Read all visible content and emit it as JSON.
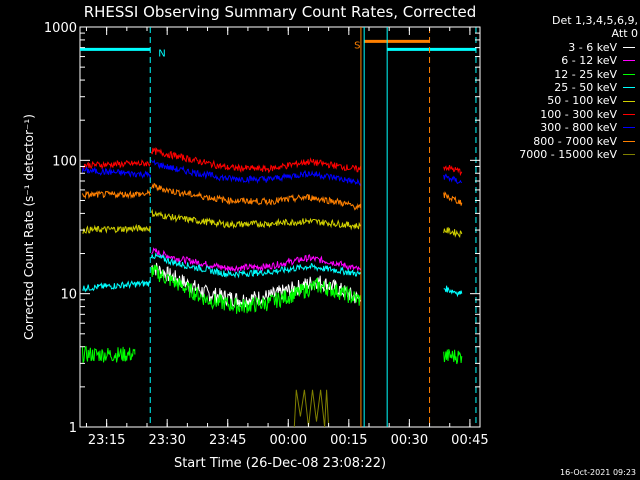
{
  "chart_data": {
    "type": "line",
    "title": "RHESSI Observing Summary Count Rates, Corrected",
    "xlabel": "Start Time (26-Dec-08 23:08:22)",
    "ylabel": "Corrected Count Rate (s⁻¹ detector⁻¹)",
    "yscale": "log",
    "ylim": [
      1,
      1000
    ],
    "xlim_minutes_after_23_00": [
      8.4,
      107.5
    ],
    "x_ticks": [
      {
        "label": "23:15",
        "min": 15
      },
      {
        "label": "23:30",
        "min": 30
      },
      {
        "label": "23:45",
        "min": 45
      },
      {
        "label": "00:00",
        "min": 60
      },
      {
        "label": "00:15",
        "min": 75
      },
      {
        "label": "00:30",
        "min": 90
      },
      {
        "label": "00:45",
        "min": 105
      }
    ],
    "y_ticks": [
      {
        "label": "1",
        "v": 1
      },
      {
        "label": "10",
        "v": 10
      },
      {
        "label": "100",
        "v": 100
      },
      {
        "label": "1000",
        "v": 1000
      }
    ],
    "legend_header": [
      "Det 1,3,4,5,6,9,",
      "Att 0"
    ],
    "series": [
      {
        "name": "3 - 6 keV",
        "color": "#ffffff",
        "segments": [
          [
            [
              26.1,
              16
            ],
            [
              30,
              14
            ],
            [
              40,
              10
            ],
            [
              48,
              9
            ],
            [
              55,
              9.5
            ],
            [
              62,
              11
            ],
            [
              67,
              12.5
            ],
            [
              72,
              11
            ],
            [
              77.8,
              9
            ]
          ]
        ]
      },
      {
        "name": "6 - 12 keV",
        "color": "#ff00ff",
        "segments": [
          [
            [
              26.1,
              21
            ],
            [
              32,
              18.5
            ],
            [
              45,
              15.5
            ],
            [
              55,
              16
            ],
            [
              65,
              18.5
            ],
            [
              72,
              17
            ],
            [
              77.8,
              15
            ]
          ]
        ]
      },
      {
        "name": "12 - 25 keV",
        "color": "#00ff00",
        "segments": [
          [
            [
              9,
              3.5
            ],
            [
              22,
              3.5
            ]
          ],
          [
            [
              26.1,
              15
            ],
            [
              30,
              13
            ],
            [
              40,
              9
            ],
            [
              48,
              8
            ],
            [
              55,
              8.5
            ],
            [
              62,
              10
            ],
            [
              67,
              11.5
            ],
            [
              72,
              10.5
            ],
            [
              77.8,
              9
            ]
          ],
          [
            [
              98.5,
              3.4
            ],
            [
              103,
              3.4
            ]
          ]
        ]
      },
      {
        "name": "25 - 50 keV",
        "color": "#00ffff",
        "segments": [
          [
            [
              9,
              11
            ],
            [
              25.8,
              12
            ]
          ],
          [
            [
              26.1,
              19.5
            ],
            [
              32,
              17
            ],
            [
              45,
              14
            ],
            [
              55,
              14.5
            ],
            [
              65,
              16
            ],
            [
              72,
              15
            ],
            [
              77.8,
              14
            ]
          ],
          [
            [
              98.5,
              11
            ],
            [
              103,
              10
            ]
          ]
        ]
      },
      {
        "name": "50 - 100 keV",
        "color": "#d0d000",
        "segments": [
          [
            [
              9,
              30
            ],
            [
              25.8,
              31
            ]
          ],
          [
            [
              26.1,
              40
            ],
            [
              32,
              37
            ],
            [
              45,
              33
            ],
            [
              55,
              33.5
            ],
            [
              65,
              35
            ],
            [
              72,
              33.5
            ],
            [
              77.8,
              32
            ]
          ],
          [
            [
              98.5,
              30
            ],
            [
              103,
              28
            ]
          ]
        ]
      },
      {
        "name": "100 - 300 keV",
        "color": "#ff0000",
        "segments": [
          [
            [
              9,
              92
            ],
            [
              25.8,
              95
            ]
          ],
          [
            [
              26.1,
              118
            ],
            [
              32,
              108
            ],
            [
              45,
              88
            ],
            [
              55,
              86
            ],
            [
              65,
              98
            ],
            [
              72,
              91
            ],
            [
              77.8,
              85
            ]
          ],
          [
            [
              98.5,
              90
            ],
            [
              103,
              82
            ]
          ]
        ]
      },
      {
        "name": "300 - 800 keV",
        "color": "#0000ff",
        "segments": [
          [
            [
              9,
              84
            ],
            [
              25.8,
              78
            ]
          ],
          [
            [
              26.1,
              96
            ],
            [
              32,
              86
            ],
            [
              45,
              73
            ],
            [
              55,
              72
            ],
            [
              65,
              80
            ],
            [
              72,
              74
            ],
            [
              77.8,
              67
            ]
          ],
          [
            [
              98.5,
              76
            ],
            [
              103,
              68
            ]
          ]
        ]
      },
      {
        "name": "800 - 7000 keV",
        "color": "#ff8000",
        "segments": [
          [
            [
              9,
              55
            ],
            [
              25.8,
              56
            ]
          ],
          [
            [
              26.1,
              64
            ],
            [
              32,
              58
            ],
            [
              45,
              50
            ],
            [
              55,
              49
            ],
            [
              65,
              53
            ],
            [
              72,
              49
            ],
            [
              77.8,
              44
            ]
          ],
          [
            [
              98.5,
              55
            ],
            [
              103,
              48
            ]
          ]
        ]
      },
      {
        "name": "7000 - 15000 keV",
        "color": "#808000",
        "segments": [
          [
            [
              61.5,
              1
            ],
            [
              62,
              1.9
            ],
            [
              63,
              1.2
            ],
            [
              64,
              1.9
            ],
            [
              65,
              1
            ],
            [
              66,
              1.9
            ],
            [
              67,
              1.1
            ],
            [
              68,
              1.9
            ],
            [
              69,
              1
            ],
            [
              69.5,
              1.9
            ],
            [
              70,
              1
            ]
          ]
        ]
      }
    ],
    "flags": [
      {
        "label": "N",
        "color": "#00ffff",
        "x_start": 8.4,
        "x_end": 25.8,
        "y": 680
      },
      {
        "label": "S",
        "color": "#ff8000",
        "x_start": 78.8,
        "x_end": 95,
        "y": 780
      },
      {
        "label": "",
        "color": "#00ffff",
        "x_start": 84.5,
        "x_end": 106.5,
        "y": 680
      }
    ],
    "vertical_lines": [
      {
        "color": "#00ffff",
        "x": 25.8,
        "style": "dashed"
      },
      {
        "color": "#ff8000",
        "x": 78,
        "style": "solid"
      },
      {
        "color": "#00ffff",
        "x": 78.8,
        "style": "solid"
      },
      {
        "color": "#ff8000",
        "x": 95,
        "style": "dashed"
      },
      {
        "color": "#00ffff",
        "x": 84.5,
        "style": "solid"
      },
      {
        "color": "#00ffff",
        "x": 106.5,
        "style": "dashed"
      }
    ],
    "grid": false,
    "legend_position": "top-right"
  },
  "timestamp": "16-Oct-2021 09:23"
}
